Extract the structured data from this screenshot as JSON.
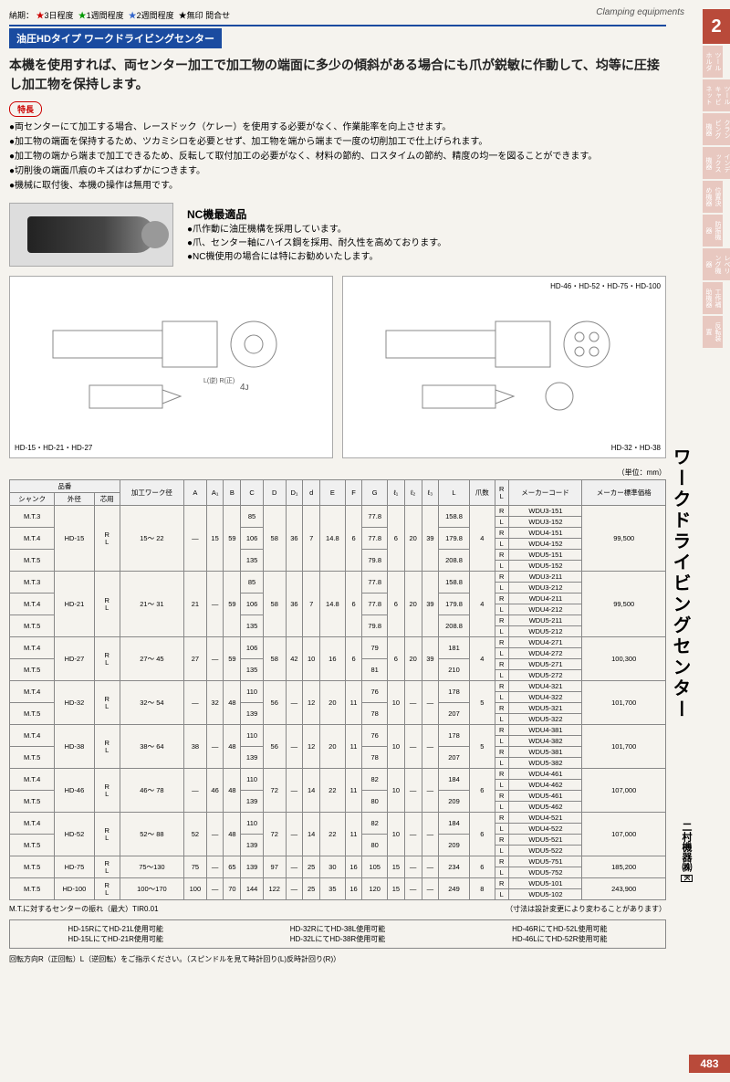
{
  "legend": {
    "items": [
      {
        "colorClass": "star-red",
        "text": "3日程度"
      },
      {
        "colorClass": "star-green",
        "text": "1週間程度"
      },
      {
        "colorClass": "star-blue",
        "text": "2週間程度"
      },
      {
        "colorClass": "",
        "text": "無印 問合せ"
      }
    ],
    "prefix": "納期："
  },
  "topRight": "Clamping equipments",
  "tabNum": "2",
  "sideTabs": [
    "ツールホルダ",
    "ツールキャビネット",
    "クランピング機器",
    "インデックス機器",
    "位置決め機器",
    "防振機器",
    "レベリング機器",
    "工作補助機器",
    "反転装置"
  ],
  "titleBar": "油圧HDタイプ ワークドライビングセンター",
  "mainDesc": "本機を使用すれば、両センター加工で加工物の端面に多少の傾斜がある場合にも爪が鋭敏に作動して、均等に圧接し加工物を保持します。",
  "tokuchou": "特長",
  "bullets": [
    "●両センターにて加工する場合、レースドック（ケレー）を使用する必要がなく、作業能率を向上させます。",
    "●加工物の端面を保持するため、ツカミシロを必要とせず、加工物を端から端まで一度の切削加工で仕上げられます。",
    "●加工物の端から端まで加工できるため、反転して取付加工の必要がなく、材料の節約、ロスタイムの節約、精度の均一を図ることができます。",
    "●切削後の端面爪痕のキズはわずかにつきます。",
    "●機械に取付後、本機の操作は無用です。"
  ],
  "nc": {
    "title": "NC機最適品",
    "lines": [
      "●爪作動に油圧機構を採用しています。",
      "●爪、センター軸にハイス鋼を採用、耐久性を高めております。",
      "●NC機使用の場合には特にお勧めいたします。"
    ]
  },
  "diagramLabels": {
    "left": "HD-15・HD-21・HD-27",
    "rightTop": "HD-46・HD-52・HD-75・HD-100",
    "rightBottom": "HD-32・HD-38"
  },
  "unit": "（単位：mm）",
  "tableHeaders": {
    "productNum": "品番",
    "shank": "シャンク",
    "outerDia": "外径",
    "hoyou": "芯用",
    "workDia": "加工ワーク径",
    "A": "A",
    "A1": "A₁",
    "B": "B",
    "C": "C",
    "D": "D",
    "D1": "D₁",
    "d": "d",
    "E": "E",
    "F": "F",
    "G": "G",
    "l1": "ℓ₁",
    "l2": "ℓ₂",
    "l3": "ℓ₃",
    "L": "L",
    "claws": "爪数",
    "RL": "R/L",
    "makerCode": "メーカーコード",
    "price": "メーカー標準価格"
  },
  "groups": [
    {
      "shanks": [
        "M.T.3",
        "M.T.4",
        "M.T.5"
      ],
      "outer": "HD-15",
      "work": "15～ 22",
      "A": "—",
      "A1": "15",
      "B": "59",
      "C": [
        "85",
        "106",
        "135"
      ],
      "D": "58",
      "D1": "36",
      "d": "7",
      "E": "14.8",
      "F": "6",
      "G": [
        "77.8",
        "77.8",
        "79.8"
      ],
      "l1": "6",
      "l2": "20",
      "l3": "39",
      "L": [
        "158.8",
        "179.8",
        "208.8"
      ],
      "claws": "4",
      "codes": [
        [
          "WDU3-151",
          "WDU3-152"
        ],
        [
          "WDU4-151",
          "WDU4-152"
        ],
        [
          "WDU5-151",
          "WDU5-152"
        ]
      ],
      "price": "99,500"
    },
    {
      "shanks": [
        "M.T.3",
        "M.T.4",
        "M.T.5"
      ],
      "outer": "HD-21",
      "work": "21～ 31",
      "A": "21",
      "A1": "—",
      "B": "59",
      "C": [
        "85",
        "106",
        "135"
      ],
      "D": "58",
      "D1": "36",
      "d": "7",
      "E": "14.8",
      "F": "6",
      "G": [
        "77.8",
        "77.8",
        "79.8"
      ],
      "l1": "6",
      "l2": "20",
      "l3": "39",
      "L": [
        "158.8",
        "179.8",
        "208.8"
      ],
      "claws": "4",
      "codes": [
        [
          "WDU3-211",
          "WDU3-212"
        ],
        [
          "WDU4-211",
          "WDU4-212"
        ],
        [
          "WDU5-211",
          "WDU5-212"
        ]
      ],
      "price": "99,500"
    },
    {
      "shanks": [
        "M.T.4",
        "M.T.5"
      ],
      "outer": "HD-27",
      "work": "27～ 45",
      "A": "27",
      "A1": "—",
      "B": "59",
      "C": [
        "106",
        "135"
      ],
      "D": "58",
      "D1": "42",
      "d": "10",
      "E": "16",
      "F": "6",
      "G": [
        "79",
        "81"
      ],
      "l1": "6",
      "l2": "20",
      "l3": "39",
      "L": [
        "181",
        "210"
      ],
      "claws": "4",
      "codes": [
        [
          "WDU4-271",
          "WDU4-272"
        ],
        [
          "WDU5-271",
          "WDU5-272"
        ]
      ],
      "price": "100,300"
    },
    {
      "shanks": [
        "M.T.4",
        "M.T.5"
      ],
      "outer": "HD-32",
      "work": "32～ 54",
      "A": "—",
      "A1": "32",
      "B": "48",
      "C": [
        "110",
        "139"
      ],
      "D": "56",
      "D1": "—",
      "d": "12",
      "E": "20",
      "F": "11",
      "G": [
        "76",
        "78"
      ],
      "l1": "10",
      "l2": "—",
      "l3": "—",
      "L": [
        "178",
        "207"
      ],
      "claws": "5",
      "codes": [
        [
          "WDU4-321",
          "WDU4-322"
        ],
        [
          "WDU5-321",
          "WDU5-322"
        ]
      ],
      "price": "101,700"
    },
    {
      "shanks": [
        "M.T.4",
        "M.T.5"
      ],
      "outer": "HD-38",
      "work": "38～ 64",
      "A": "38",
      "A1": "—",
      "B": "48",
      "C": [
        "110",
        "139"
      ],
      "D": "56",
      "D1": "—",
      "d": "12",
      "E": "20",
      "F": "11",
      "G": [
        "76",
        "78"
      ],
      "l1": "10",
      "l2": "—",
      "l3": "—",
      "L": [
        "178",
        "207"
      ],
      "claws": "5",
      "codes": [
        [
          "WDU4-381",
          "WDU4-382"
        ],
        [
          "WDU5-381",
          "WDU5-382"
        ]
      ],
      "price": "101,700"
    },
    {
      "shanks": [
        "M.T.4",
        "M.T.5"
      ],
      "outer": "HD-46",
      "work": "46～ 78",
      "A": "—",
      "A1": "46",
      "B": "48",
      "C": [
        "110",
        "139"
      ],
      "D": "72",
      "D1": "—",
      "d": "14",
      "E": "22",
      "F": "11",
      "G": [
        "82",
        "80"
      ],
      "l1": "10",
      "l2": "—",
      "l3": "—",
      "L": [
        "184",
        "209"
      ],
      "claws": "6",
      "codes": [
        [
          "WDU4-461",
          "WDU4-462"
        ],
        [
          "WDU5-461",
          "WDU5-462"
        ]
      ],
      "price": "107,000"
    },
    {
      "shanks": [
        "M.T.4",
        "M.T.5"
      ],
      "outer": "HD-52",
      "work": "52～ 88",
      "A": "52",
      "A1": "—",
      "B": "48",
      "C": [
        "110",
        "139"
      ],
      "D": "72",
      "D1": "—",
      "d": "14",
      "E": "22",
      "F": "11",
      "G": [
        "82",
        "80"
      ],
      "l1": "10",
      "l2": "—",
      "l3": "—",
      "L": [
        "184",
        "209"
      ],
      "claws": "6",
      "codes": [
        [
          "WDU4-521",
          "WDU4-522"
        ],
        [
          "WDU5-521",
          "WDU5-522"
        ]
      ],
      "price": "107,000"
    },
    {
      "shanks": [
        "M.T.5"
      ],
      "outer": "HD-75",
      "work": "75～130",
      "A": "75",
      "A1": "—",
      "B": "65",
      "C": [
        "139"
      ],
      "D": "97",
      "D1": "—",
      "d": "25",
      "E": "30",
      "F": "16",
      "G": [
        "105"
      ],
      "l1": "15",
      "l2": "—",
      "l3": "—",
      "L": [
        "234"
      ],
      "claws": "6",
      "codes": [
        [
          "WDU5-751",
          "WDU5-752"
        ]
      ],
      "price": "185,200"
    },
    {
      "shanks": [
        "M.T.5"
      ],
      "outer": "HD-100",
      "work": "100～170",
      "A": "100",
      "A1": "—",
      "B": "70",
      "C": [
        "144"
      ],
      "D": "122",
      "D1": "—",
      "d": "25",
      "E": "35",
      "F": "16",
      "G": [
        "120"
      ],
      "l1": "15",
      "l2": "—",
      "l3": "—",
      "L": [
        "249"
      ],
      "claws": "8",
      "codes": [
        [
          "WDU5-101",
          "WDU5-102"
        ]
      ],
      "price": "243,900"
    }
  ],
  "noteLeft": "M.T.に対するセンターの振れ（最大）TIR0.01",
  "noteRight": "（寸法は設計変更により変わることがあります）",
  "compat": [
    [
      "HD-15RにてHD-21L使用可能",
      "HD-15LにてHD-21R使用可能"
    ],
    [
      "HD-32RにてHD-38L使用可能",
      "HD-32LにてHD-38R使用可能"
    ],
    [
      "HD-46RにてHD-52L使用可能",
      "HD-46LにてHD-52R使用可能"
    ]
  ],
  "rotNote": "回転方向R（正回転）L（逆回転）をご指示ください。（スピンドルを見て時計回り(L)反時計回り(R)）",
  "vtitle": "ワークドライビングセンター",
  "vmaker": "二村機器㈱",
  "vmakerK": "K",
  "pageNum": "483"
}
